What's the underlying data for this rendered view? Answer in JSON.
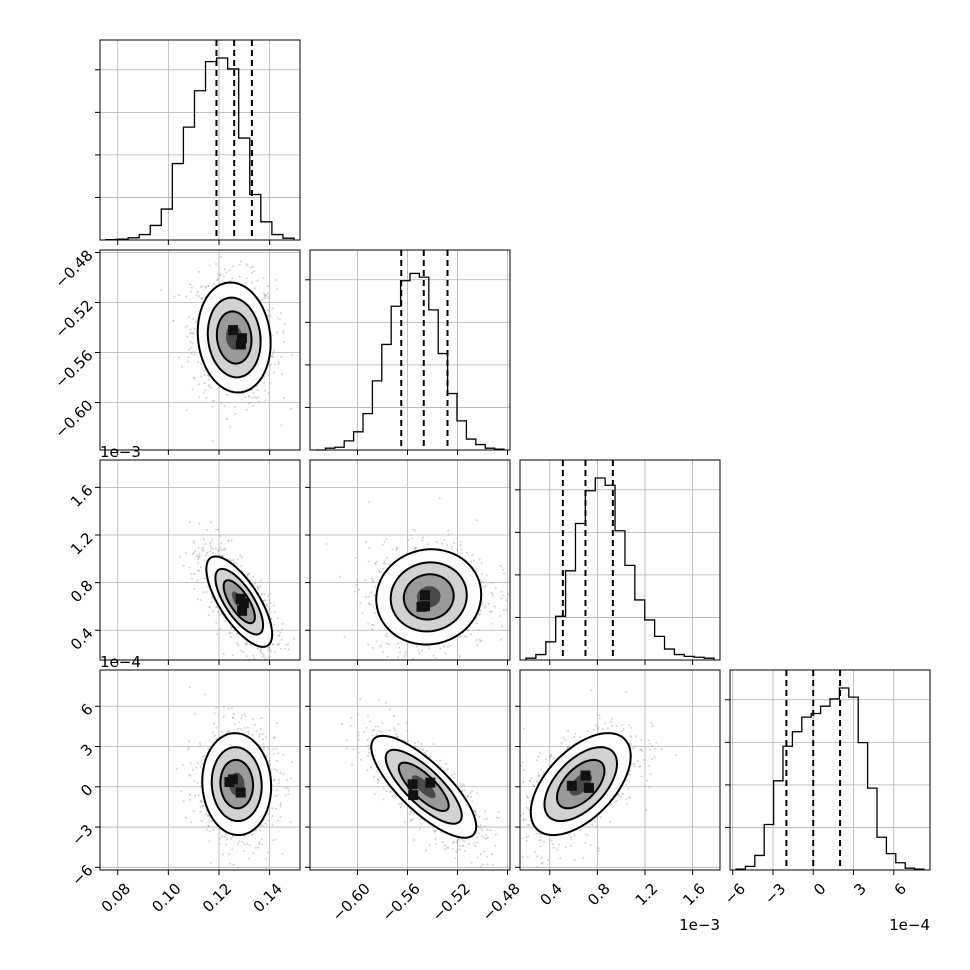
{
  "chart_data": {
    "type": "corner",
    "title": "",
    "parameters": [
      {
        "range": [
          0.073,
          0.152
        ],
        "ticks": [
          0.08,
          0.1,
          0.12,
          0.14
        ],
        "tick_labels": [
          "0.08",
          "0.10",
          "0.12",
          "0.14"
        ],
        "quantiles": [
          0.119,
          0.126,
          0.133
        ],
        "offset_label": ""
      },
      {
        "range": [
          -0.638,
          -0.478
        ],
        "ticks": [
          -0.6,
          -0.56,
          -0.52,
          -0.48
        ],
        "tick_labels": [
          "−0.60",
          "−0.56",
          "−0.52",
          "−0.48"
        ],
        "quantiles": [
          -0.565,
          -0.547,
          -0.528
        ],
        "offset_label": ""
      },
      {
        "range": [
          0.15,
          1.83
        ],
        "ticks": [
          0.4,
          0.8,
          1.2,
          1.6
        ],
        "tick_labels": [
          "0.4",
          "0.8",
          "1.2",
          "1.6"
        ],
        "quantiles": [
          0.51,
          0.7,
          0.93
        ],
        "offset_label": "1e−3"
      },
      {
        "range": [
          -6.2,
          8.7
        ],
        "ticks": [
          -6,
          -3,
          0,
          3,
          6
        ],
        "tick_labels": [
          "−6",
          "−3",
          "0",
          "3",
          "6"
        ],
        "quantiles": [
          -2.0,
          0.0,
          2.0
        ],
        "offset_label": "1e−4"
      }
    ],
    "histograms": [
      [
        0.002,
        0.005,
        0.012,
        0.03,
        0.08,
        0.17,
        0.42,
        0.62,
        0.82,
        0.98,
        1.0,
        0.94,
        0.56,
        0.25,
        0.1,
        0.03,
        0.01
      ],
      [
        0.0,
        0.01,
        0.015,
        0.05,
        0.1,
        0.2,
        0.38,
        0.58,
        0.79,
        0.93,
        0.97,
        0.95,
        0.77,
        0.53,
        0.31,
        0.16,
        0.06,
        0.03,
        0.01,
        0.005
      ],
      [
        0.01,
        0.03,
        0.1,
        0.24,
        0.49,
        0.75,
        0.93,
        1.0,
        0.96,
        0.71,
        0.52,
        0.33,
        0.22,
        0.13,
        0.06,
        0.03,
        0.02,
        0.015,
        0.01
      ],
      [
        0.005,
        0.02,
        0.08,
        0.25,
        0.49,
        0.68,
        0.76,
        0.84,
        0.86,
        0.9,
        0.94,
        1.0,
        0.95,
        0.7,
        0.45,
        0.18,
        0.09,
        0.04,
        0.01,
        0.005
      ]
    ],
    "density_peaks": [
      {
        "row": 1,
        "col": 0,
        "mean": [
          0.126,
          -0.548
        ],
        "sd": [
          0.0072,
          0.022
        ],
        "rho": -0.1
      },
      {
        "row": 2,
        "col": 0,
        "mean": [
          0.128,
          0.64
        ],
        "sd": [
          0.0065,
          0.19
        ],
        "rho": -0.72
      },
      {
        "row": 2,
        "col": 1,
        "mean": [
          -0.543,
          0.68
        ],
        "sd": [
          0.021,
          0.2
        ],
        "rho": 0.05
      },
      {
        "row": 3,
        "col": 0,
        "mean": [
          0.127,
          0.2
        ],
        "sd": [
          0.0068,
          1.9
        ],
        "rho": -0.05
      },
      {
        "row": 3,
        "col": 1,
        "mean": [
          -0.547,
          0.0
        ],
        "sd": [
          0.021,
          1.9
        ],
        "rho": -0.78
      },
      {
        "row": 3,
        "col": 2,
        "mean": [
          0.66,
          0.2
        ],
        "sd": [
          0.21,
          1.9
        ],
        "rho": 0.55
      }
    ],
    "grid": true,
    "xlabel": "",
    "ylabel": ""
  }
}
